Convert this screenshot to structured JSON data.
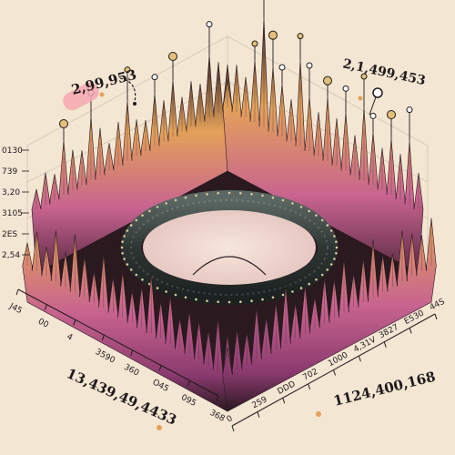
{
  "chart_data": {
    "type": "area",
    "style": "3d-isometric-spike-surface",
    "annotations": [
      "2,99,953",
      "2,1,499,453",
      "13,439,49,4433",
      "1124,400,168"
    ],
    "y_ticks": [
      "0130",
      "739",
      "3,20",
      "3105",
      "2ES",
      "2,54"
    ],
    "left_axis_ticks": [
      "J45",
      "00",
      "4",
      "3590",
      "360",
      "O45",
      "095",
      "368"
    ],
    "right_axis_ticks": [
      "0",
      "259",
      "DDD",
      "702",
      "1000",
      "4,31V",
      "3827",
      "E530",
      "44S"
    ],
    "ring": {
      "shape": "torus",
      "color": "#3c4542"
    },
    "palette": [
      "#e3a15a",
      "#c8648f",
      "#8a3a6e",
      "#3a2a2a",
      "#d8c9a0"
    ],
    "series": [
      {
        "position": "back-left",
        "values": [
          22,
          35,
          28,
          60,
          44,
          38,
          70,
          52,
          30,
          48,
          66,
          40,
          34,
          58,
          45,
          62,
          38,
          50,
          42,
          68,
          55,
          47
        ]
      },
      {
        "position": "back-right",
        "values": [
          30,
          52,
          44,
          68,
          120,
          72,
          58,
          46,
          95,
          60,
          48,
          70,
          52,
          64,
          44,
          80,
          58,
          46,
          62,
          50,
          70,
          40
        ]
      },
      {
        "position": "front-left",
        "values": [
          28,
          48,
          36,
          62,
          42,
          70,
          50,
          38,
          66,
          44,
          58,
          40,
          52,
          74,
          46,
          60,
          38,
          54,
          48,
          42,
          64,
          50
        ]
      },
      {
        "position": "front-right",
        "values": [
          34,
          50,
          40,
          64,
          46,
          58,
          72,
          44,
          60,
          38,
          56,
          48,
          66,
          42,
          54,
          70,
          46,
          40,
          62,
          52,
          44,
          58
        ]
      }
    ],
    "grid": true
  }
}
